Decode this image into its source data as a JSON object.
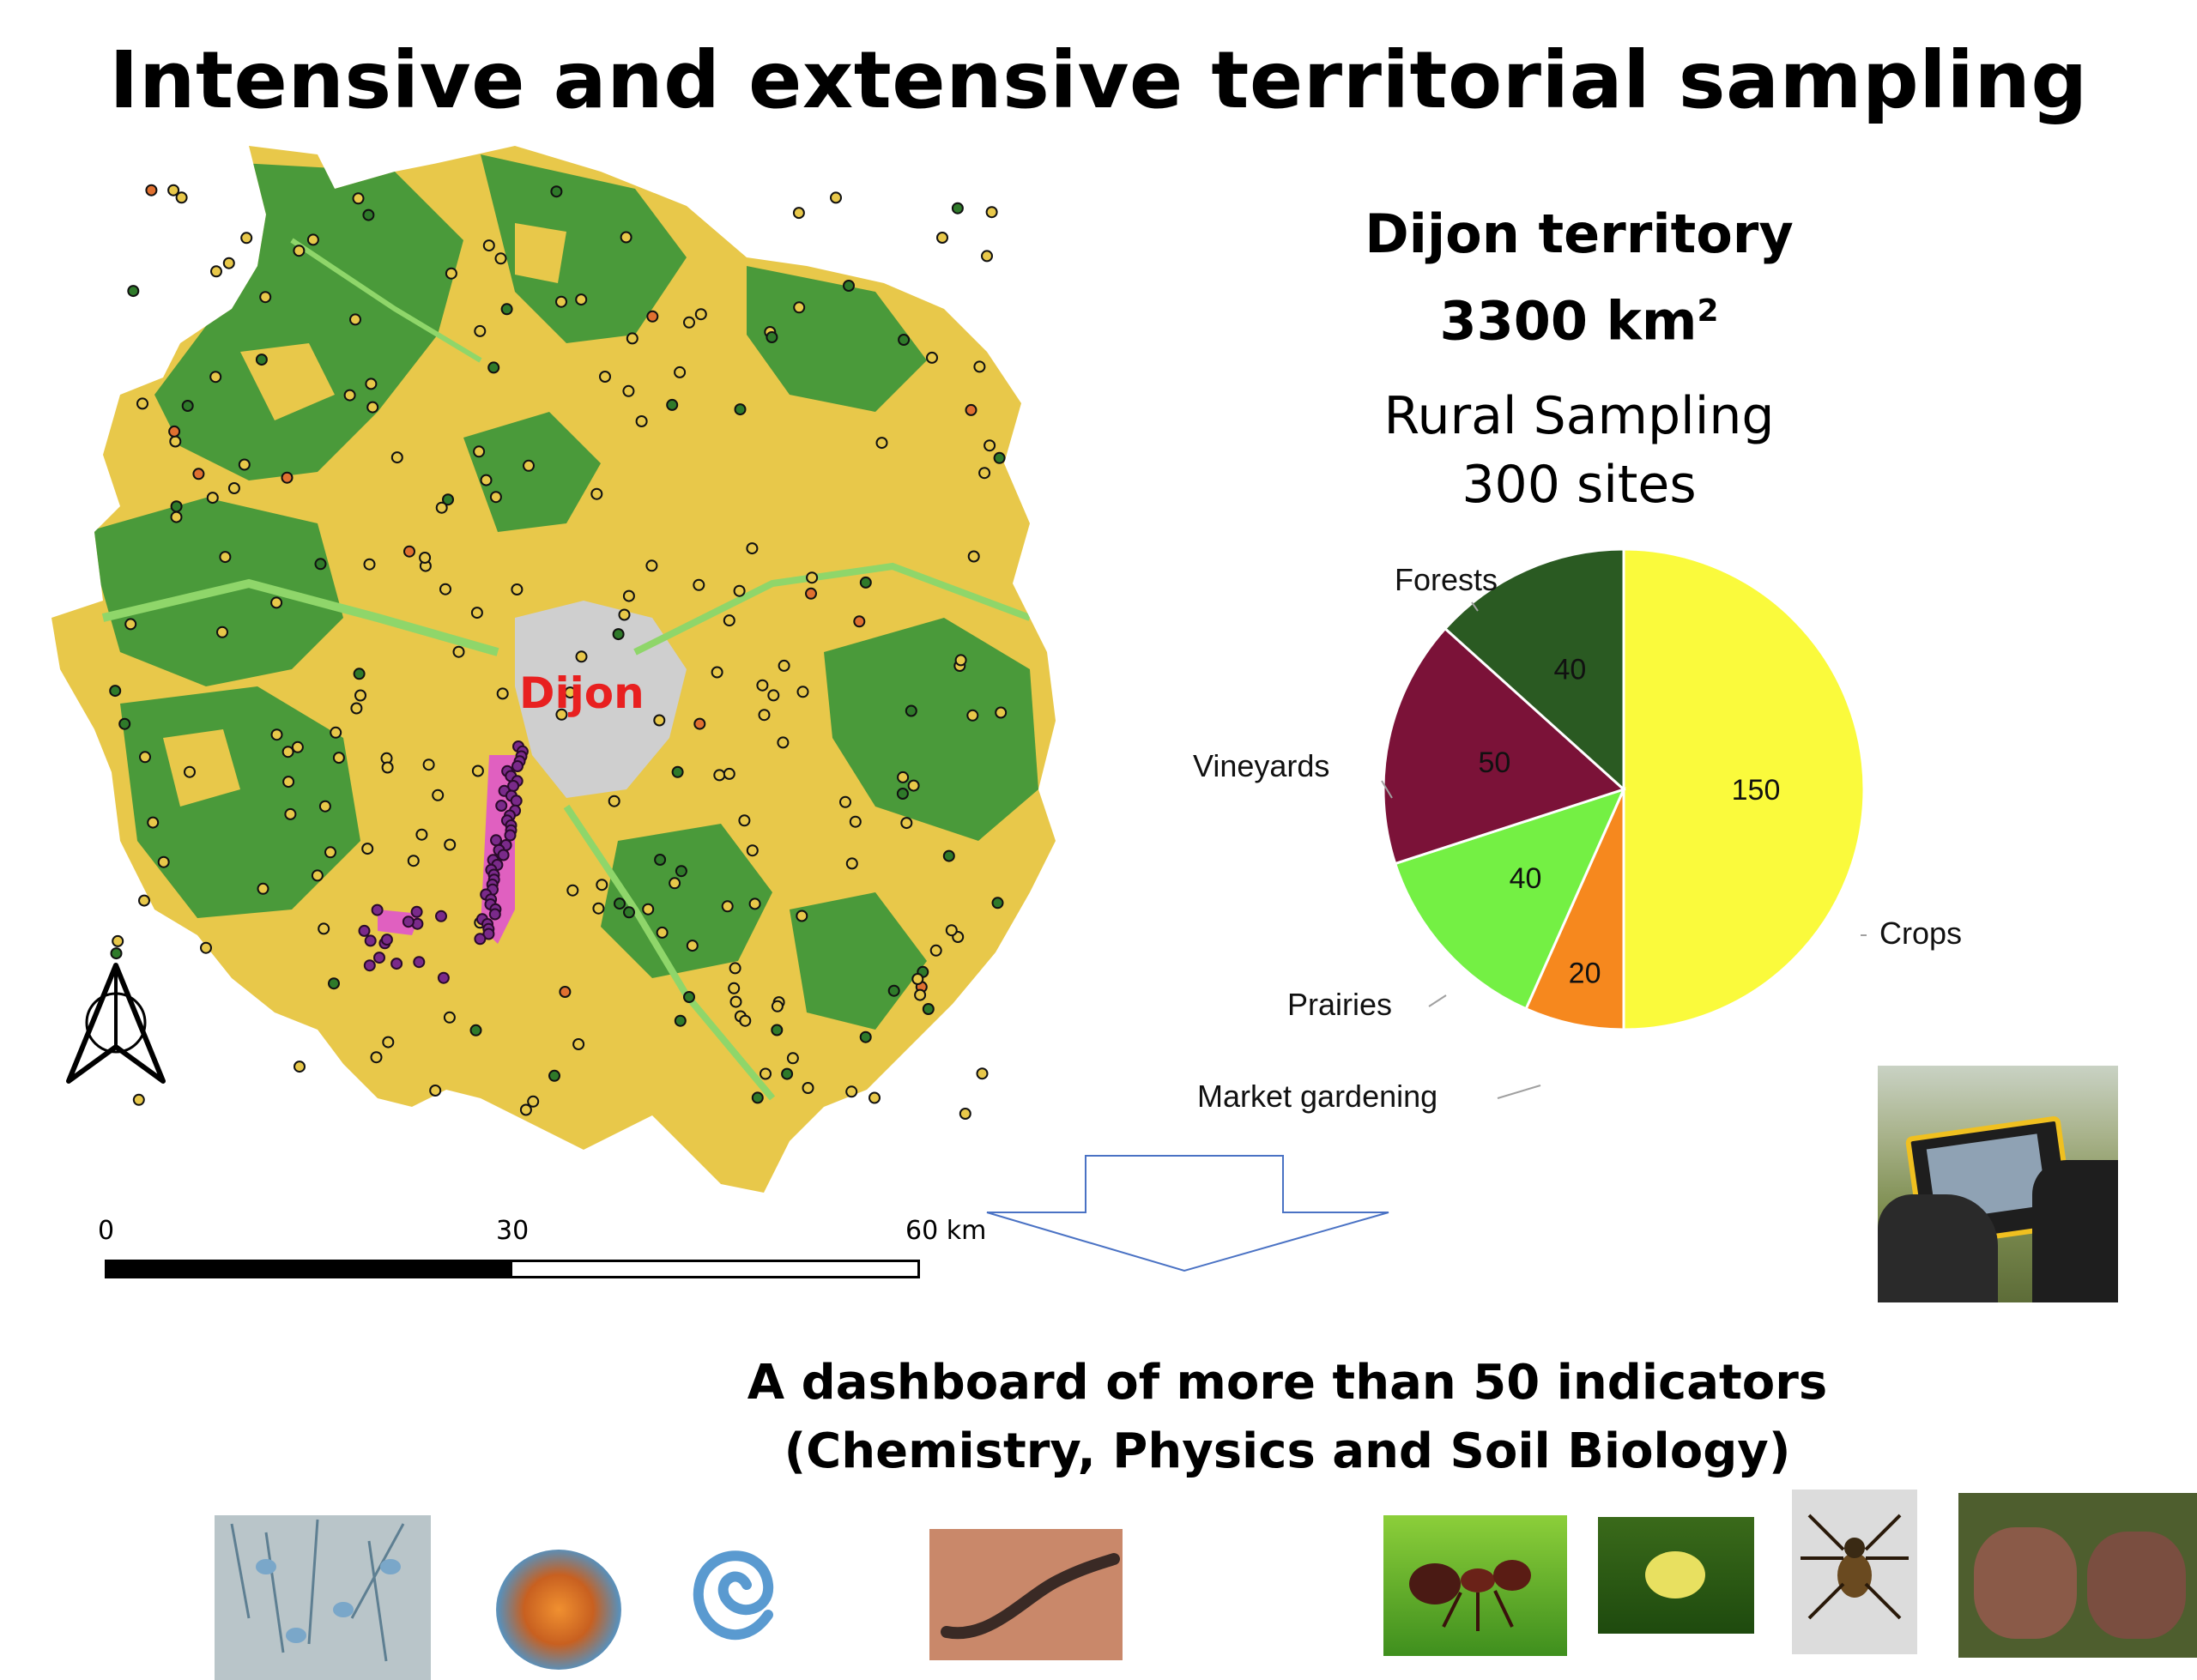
{
  "title": "Intensive and extensive territorial sampling",
  "territory": {
    "name": "Dijon territory",
    "area_value": "3300 km",
    "area_sup": "2"
  },
  "sampling": {
    "line1": "Rural Sampling",
    "line2": "300 sites"
  },
  "map": {
    "city_label": "Dijon",
    "scale": {
      "tick0": "0",
      "tick1": "30",
      "tick2": "60 km"
    },
    "colors": {
      "forest": "#4a9a3a",
      "crops": "#e8c84a",
      "urban": "#cfcfcf",
      "prairie": "#8fd66a",
      "vineyard": "#e060c0",
      "city_label": "#e82020"
    }
  },
  "chart_data": {
    "type": "pie",
    "total_label": "300 sites",
    "slices": [
      {
        "label": "Crops",
        "value": 150,
        "color": "#fafa3c"
      },
      {
        "label": "Market gardening",
        "value": 20,
        "color": "#f6881e"
      },
      {
        "label": "Prairies",
        "value": 40,
        "color": "#74f044"
      },
      {
        "label": "Vineyards",
        "value": 50,
        "color": "#7b1238"
      },
      {
        "label": "Forests",
        "value": 40,
        "color": "#2a5a22"
      }
    ],
    "start_angle": "12 o'clock, clockwise"
  },
  "dashboard": {
    "line1": "A dashboard of more than 50 indicators",
    "line2": "(Chemistry, Physics and Soil Biology)"
  },
  "photos": [
    "tablet-photo",
    "fungi-photo",
    "bacteria-photo",
    "nematode-photo",
    "earthworm-photo",
    "ant-photo",
    "springtail-photo",
    "spider-photo",
    "soil-clods-photo"
  ]
}
